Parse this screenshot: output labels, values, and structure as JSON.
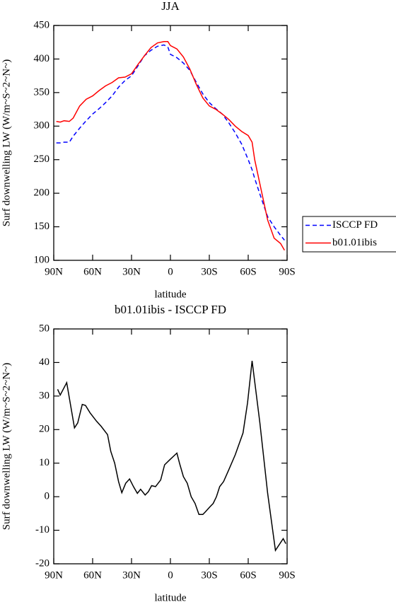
{
  "chart_data": [
    {
      "type": "line",
      "title": "JJA",
      "xlabel": "latitude",
      "ylabel": "Surf downwelling LW (W/m~S~2~N~)",
      "x": [
        88,
        85,
        82,
        78,
        75,
        70,
        65,
        60,
        55,
        50,
        45,
        40,
        35,
        30,
        25,
        20,
        15,
        10,
        5,
        2,
        0,
        -5,
        -10,
        -15,
        -20,
        -25,
        -30,
        -35,
        -40,
        -45,
        -50,
        -55,
        -60,
        -63,
        -65,
        -70,
        -75,
        -80,
        -85,
        -88
      ],
      "series": [
        {
          "name": "ISCCP FD",
          "color": "#0000ff",
          "line_style": "dashed",
          "values": [
            275,
            275,
            276,
            276,
            285,
            297,
            308,
            318,
            326,
            335,
            345,
            358,
            368,
            375,
            390,
            405,
            413,
            419,
            421,
            418,
            407,
            402,
            394,
            383,
            365,
            348,
            335,
            326,
            318,
            305,
            290,
            273,
            250,
            235,
            222,
            193,
            165,
            150,
            137,
            130
          ]
        },
        {
          "name": "b01.01ibis",
          "color": "#ff0000",
          "line_style": "solid",
          "values": [
            307,
            306,
            308,
            307,
            312,
            330,
            340,
            345,
            353,
            360,
            365,
            372,
            373,
            378,
            392,
            405,
            417,
            424,
            426,
            426,
            420,
            415,
            403,
            385,
            362,
            342,
            330,
            325,
            318,
            310,
            300,
            292,
            286,
            276,
            250,
            205,
            160,
            133,
            125,
            115
          ]
        }
      ],
      "xlim": [
        90,
        -90
      ],
      "xticks": [
        {
          "value": 90,
          "label": "90N"
        },
        {
          "value": 60,
          "label": "60N"
        },
        {
          "value": 30,
          "label": "30N"
        },
        0,
        {
          "value": -30,
          "label": "30S"
        },
        {
          "value": -60,
          "label": "60S"
        },
        {
          "value": -90,
          "label": "90S"
        }
      ],
      "ylim": [
        100,
        450
      ],
      "yticks": [
        100,
        150,
        200,
        250,
        300,
        350,
        400,
        450
      ],
      "legend": "right"
    },
    {
      "type": "line",
      "title": "b01.01ibis - ISCCP FD",
      "xlabel": "latitude",
      "ylabel": "Surf downwelling LW (W/m~S~2~N~)",
      "x": [
        87,
        85,
        80,
        74,
        71.5,
        68,
        65.5,
        62,
        57,
        53.5,
        48.5,
        46,
        43,
        40,
        37.5,
        34.5,
        31.5,
        28.5,
        25.5,
        23,
        19.5,
        17,
        14.5,
        11.5,
        7.5,
        4.5,
        0.5,
        -5,
        -7,
        -10,
        -13,
        -16,
        -19,
        -22,
        -25,
        -27,
        -30.5,
        -33,
        -35.5,
        -38,
        -41,
        -45,
        -50,
        -56,
        -59.5,
        -63,
        -69,
        -75,
        -81,
        -87,
        -89
      ],
      "values": [
        32,
        30.3,
        34,
        20.5,
        22,
        27.5,
        27.2,
        25,
        22.5,
        21,
        18.5,
        13.5,
        10,
        4.5,
        1.2,
        4,
        5.3,
        3,
        1,
        2.2,
        0.5,
        1.5,
        3.3,
        3,
        5,
        9.5,
        11,
        13,
        10,
        6,
        4,
        0,
        -2,
        -5.3,
        -5.3,
        -4.5,
        -3,
        -2,
        0,
        3,
        4.5,
        8,
        12.5,
        19,
        28,
        40.5,
        22,
        1,
        -16,
        -12.5,
        -14
      ],
      "color": "#000000",
      "xlim": [
        90,
        -90
      ],
      "xticks": [
        {
          "value": 90,
          "label": "90N"
        },
        {
          "value": 60,
          "label": "60N"
        },
        {
          "value": 30,
          "label": "30N"
        },
        0,
        {
          "value": -30,
          "label": "30S"
        },
        {
          "value": -60,
          "label": "60S"
        },
        {
          "value": -90,
          "label": "90S"
        }
      ],
      "ylim": [
        -20,
        50
      ],
      "yticks": [
        -20,
        -10,
        0,
        10,
        20,
        30,
        40,
        50
      ]
    }
  ]
}
